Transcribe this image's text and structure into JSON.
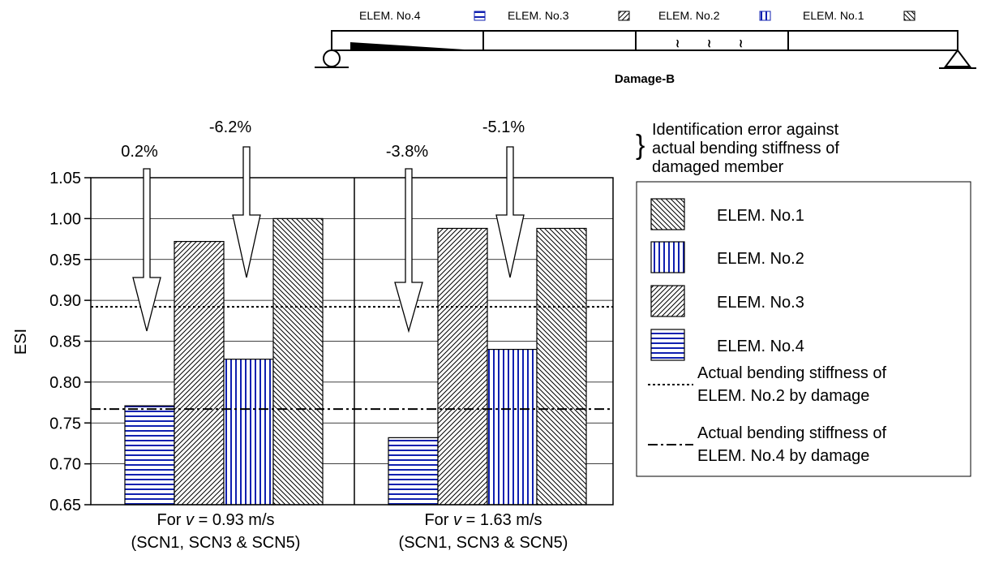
{
  "beam": {
    "elements": [
      "ELEM. No.4",
      "ELEM. No.3",
      "ELEM. No.2",
      "ELEM. No.1"
    ],
    "caption": "Damage-B"
  },
  "annotation": {
    "brace_text": [
      "Identification error against",
      "actual bending stiffness of",
      "damaged member"
    ]
  },
  "chart_data": {
    "type": "bar",
    "ylabel": "ESI",
    "ylim": [
      0.65,
      1.05
    ],
    "yticks": [
      "1.05",
      "1.00",
      "0.95",
      "0.90",
      "0.85",
      "0.80",
      "0.75",
      "0.70",
      "0.65"
    ],
    "groups": [
      {
        "label_prefix": "For ",
        "label_var": "v",
        "label_rest": " =  0.93  m/s",
        "label_line2": "(SCN1, SCN3 & SCN5)"
      },
      {
        "label_prefix": "For ",
        "label_var": "v",
        "label_rest": " =  1.63  m/s",
        "label_line2": "(SCN1, SCN3 & SCN5)"
      }
    ],
    "series": [
      {
        "name": "ELEM. No.4",
        "values": [
          0.771,
          0.732
        ],
        "pattern": "horizontal-blue"
      },
      {
        "name": "ELEM. No.3",
        "values": [
          0.972,
          0.988
        ],
        "pattern": "diagonal-ne"
      },
      {
        "name": "ELEM. No.2",
        "values": [
          0.828,
          0.84
        ],
        "pattern": "vertical-blue"
      },
      {
        "name": "ELEM. No.1",
        "values": [
          1.0,
          0.988
        ],
        "pattern": "diagonal-nw"
      }
    ],
    "legend_order": [
      "ELEM. No.1",
      "ELEM. No.2",
      "ELEM. No.3",
      "ELEM. No.4"
    ],
    "reference_lines": [
      {
        "value": 0.892,
        "style": "dotted",
        "legend": [
          "Actual bending stiffness of",
          "ELEM. No.2 by damage"
        ]
      },
      {
        "value": 0.767,
        "style": "dash-dot",
        "legend": [
          "Actual bending stiffness of",
          "ELEM. No.4 by damage"
        ]
      }
    ],
    "error_annotations": [
      {
        "group": 0,
        "target": "ELEM. No.4",
        "label": "0.2%"
      },
      {
        "group": 0,
        "target": "ELEM. No.2",
        "label": "-6.2%"
      },
      {
        "group": 1,
        "target": "ELEM. No.4",
        "label": "-3.8%"
      },
      {
        "group": 1,
        "target": "ELEM. No.2",
        "label": "-5.1%"
      }
    ],
    "grid": "horizontal at major ticks",
    "legend_position": "right"
  }
}
